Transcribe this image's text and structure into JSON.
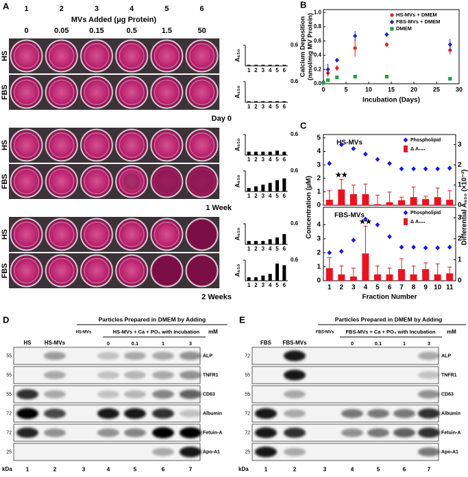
{
  "panel_a": {
    "label": "A",
    "columns": [
      "1",
      "2",
      "3",
      "4",
      "5",
      "6"
    ],
    "axis_title": "MVs Added (μg Protein)",
    "amounts": [
      "0",
      "0.05",
      "0.15",
      "0.5",
      "1.5",
      "50"
    ],
    "row_labels": [
      "HS",
      "FBS"
    ],
    "times": [
      "Day 0",
      "1 Week",
      "2 Weeks"
    ]
  },
  "chart_data": [
    {
      "type": "scatter",
      "panel": "B",
      "ylabel": [
        "Calcium Deposition",
        "(nmol/mg MV Protein)"
      ],
      "xlabel": "Incubation (Days)",
      "x": [
        0,
        1,
        3,
        7,
        14,
        28
      ],
      "xlim": [
        0,
        30
      ],
      "xticks": [
        0,
        5,
        10,
        15,
        20,
        25,
        30
      ],
      "ylim": [
        0,
        1.04
      ],
      "yticks": [
        {
          "value": 0,
          "label": "0.0"
        },
        0.2,
        0.4,
        0.6,
        0.8,
        {
          "value": 1,
          "label": "1.0"
        }
      ],
      "legend": "upper right",
      "series": [
        {
          "name": "HS-MVs + DMEM",
          "color": "#e02020",
          "marker": "circle",
          "values": [
            0.02,
            0.15,
            0.22,
            0.5,
            0.55,
            0.47
          ],
          "errors": [
            0.01,
            0.05,
            0.04,
            0.12,
            0.03,
            0.06
          ]
        },
        {
          "name": "FBS-MVs + DMEM",
          "color": "#2020c8",
          "marker": "diamond",
          "values": [
            0.02,
            0.2,
            0.33,
            0.67,
            0.69,
            0.55
          ],
          "errors": [
            0.01,
            0.08,
            0.03,
            0.07,
            0.03,
            0.08
          ]
        },
        {
          "name": "DMEM",
          "color": "#20a040",
          "marker": "square",
          "values": [
            0.01,
            0.05,
            0.09,
            0.1,
            0.1,
            0.07
          ],
          "errors": [
            0.005,
            0.01,
            0.01,
            0.01,
            0.01,
            0.01
          ]
        }
      ]
    },
    {
      "type": "combo",
      "panel": "C",
      "title": "HS-MVs",
      "x": [
        1,
        2,
        3,
        4,
        5,
        6,
        7,
        8,
        9,
        10,
        11
      ],
      "xlim": [
        0.5,
        11.5
      ],
      "ylim": [
        0,
        5.25
      ],
      "yticks": [
        0,
        1,
        2,
        3,
        4,
        5
      ],
      "y2lim": [
        0,
        3.5
      ],
      "y2ticks": [
        0,
        1,
        2,
        3
      ],
      "series": [
        {
          "name": "Phospholipid",
          "color": "#1a1adc",
          "marker": "diamond",
          "values": [
            3.1,
            4.5,
            4.2,
            3.8,
            3.4,
            3.1,
            2.7,
            2.7,
            2.7,
            2.7,
            2.75
          ],
          "errors": [
            0.05,
            0.12,
            0.05,
            0.05,
            0.05,
            0.05,
            0.05,
            0.05,
            0.05,
            0.05,
            0.05
          ]
        },
        {
          "name": "Δ A₆₅₀",
          "color": "#e8141e",
          "axis": "y2",
          "values": [
            0.27,
            0.78,
            0.55,
            0.55,
            0.05,
            0.15,
            0.25,
            0.4,
            0.3,
            0.4,
            0.27
          ],
          "errors": [
            0.45,
            0.5,
            0.45,
            0.5,
            0.45,
            0.5,
            0.15,
            0.5,
            0.15,
            0.45,
            0.45
          ]
        }
      ],
      "annotations": [
        {
          "text": "★★",
          "x": 2
        }
      ]
    },
    {
      "type": "combo",
      "title": "FBS-MVs",
      "x": [
        1,
        2,
        3,
        4,
        5,
        6,
        7,
        8,
        9,
        10,
        11
      ],
      "xlim": [
        0.5,
        11.5
      ],
      "xticks": [
        1,
        2,
        3,
        4,
        5,
        6,
        7,
        8,
        9,
        10,
        11
      ],
      "xlabel": "Fraction Number",
      "ylabel": "Concentration (μM)",
      "y2label": "Differential A₆₅₀ (×10⁻²)",
      "ylim": [
        0,
        5.25
      ],
      "yticks": [
        0,
        1,
        2,
        3,
        4
      ],
      "y2lim": [
        0,
        3.5
      ],
      "y2ticks": [
        0,
        1,
        2,
        3
      ],
      "series": [
        {
          "name": "Phospholipid",
          "color": "#1a1adc",
          "marker": "diamond",
          "values": [
            2.0,
            2.1,
            2.9,
            4.4,
            4.0,
            3.15,
            2.4,
            2.4,
            2.35,
            2.35,
            2.4
          ],
          "errors": [
            0.05,
            0.12,
            0.05,
            0.1,
            0.05,
            0.05,
            0.05,
            0.05,
            0.05,
            0.05,
            0.05
          ]
        },
        {
          "name": "Δ A₆₅₀",
          "color": "#e8141e",
          "axis": "y2",
          "values": [
            0.6,
            0.3,
            0.2,
            1.3,
            0.3,
            0.3,
            0.55,
            0.3,
            0.55,
            0.3,
            0.35
          ],
          "errors": [
            0.5,
            0.4,
            0.4,
            1.3,
            0.4,
            0.3,
            0.5,
            0.4,
            0.3,
            0.5,
            0.3
          ]
        }
      ],
      "annotations": [
        {
          "text": "★★",
          "x": 4
        }
      ]
    },
    {
      "type": "bar",
      "ylabel": "A₆₅₀",
      "categories": [
        "1",
        "2",
        "3",
        "4",
        "5",
        "6"
      ],
      "values": [
        0.03,
        0.03,
        0.03,
        0.03,
        0.03,
        0.03
      ],
      "ylim": [
        0,
        0.6
      ],
      "yticks": [
        0.6
      ],
      "color": "#000000"
    },
    {
      "type": "bar",
      "ylabel": "A₆₅₀",
      "categories": [
        "1",
        "2",
        "3",
        "4",
        "5",
        "6"
      ],
      "values": [
        0.03,
        0.03,
        0.03,
        0.03,
        0.03,
        0.03
      ],
      "ylim": [
        0,
        0.6
      ],
      "yticks": [
        0.6
      ],
      "color": "#000000"
    },
    {
      "type": "bar",
      "ylabel": "A₆₅₀",
      "categories": [
        "1",
        "2",
        "3",
        "4",
        "5",
        "6"
      ],
      "values": [
        0.1,
        0.1,
        0.1,
        0.1,
        0.13,
        0.1
      ],
      "ylim": [
        0,
        0.6
      ],
      "yticks": [
        0.6
      ],
      "color": "#000000"
    },
    {
      "type": "bar",
      "ylabel": "A₆₅₀",
      "categories": [
        "1",
        "2",
        "3",
        "4",
        "5",
        "6"
      ],
      "values": [
        0.1,
        0.15,
        0.2,
        0.25,
        0.33,
        0.38
      ],
      "ylim": [
        0,
        0.6
      ],
      "yticks": [
        0.6
      ],
      "color": "#000000"
    },
    {
      "type": "bar",
      "ylabel": "A₆₅₀",
      "categories": [
        "1",
        "2",
        "3",
        "4",
        "5",
        "6"
      ],
      "values": [
        0.1,
        0.1,
        0.1,
        0.15,
        0.2,
        0.3
      ],
      "ylim": [
        0,
        0.6
      ],
      "yticks": [
        0.6
      ],
      "color": "#000000"
    },
    {
      "type": "bar",
      "ylabel": "A₆₅₀",
      "categories": [
        "1",
        "2",
        "3",
        "4",
        "5",
        "6"
      ],
      "values": [
        0.1,
        0.1,
        0.15,
        0.2,
        0.5,
        0.45
      ],
      "ylim": [
        0,
        0.6
      ],
      "yticks": [
        0.6
      ],
      "color": "#000000"
    }
  ],
  "panel_d": {
    "label": "D",
    "header": "Particles Prepared in DMEM by Adding",
    "sample_labels": [
      "HS",
      "HS-MVs"
    ],
    "control_label": "HS-MVs",
    "subheader": "HS-MVs + Ca + PO₄ with Incubation",
    "unit": "mM",
    "concentrations": [
      "0",
      "0.1",
      "1",
      "3"
    ],
    "proteins": [
      "ALP",
      "TNFR1",
      "CD63",
      "Albumin",
      "Fetuin-A",
      "Apo-A1"
    ],
    "markers": [
      "55",
      "55",
      "55",
      "72",
      "72",
      "25"
    ],
    "kda": "kDa",
    "lanes": [
      "1",
      "2",
      "3",
      "4",
      "5",
      "6",
      "7"
    ]
  },
  "panel_e": {
    "label": "E",
    "header": "Particles Prepared in DMEM by Adding",
    "sample_labels": [
      "FBS",
      "FBS-MVs"
    ],
    "control_label": "FBS-MVs",
    "subheader": "FBS-MVs + Ca + PO₄ with Incubation",
    "unit": "mM",
    "concentrations": [
      "0",
      "0.1",
      "1",
      "3"
    ],
    "proteins": [
      "ALP",
      "TNFR1",
      "CD63",
      "Albumin",
      "Fetuin-A",
      "Apo-A1"
    ],
    "markers": [
      "72",
      "55",
      "55",
      "72",
      "72",
      "25"
    ],
    "kda": "kDa",
    "lanes": [
      "1",
      "2",
      "3",
      "4",
      "5",
      "6",
      "7"
    ]
  }
}
